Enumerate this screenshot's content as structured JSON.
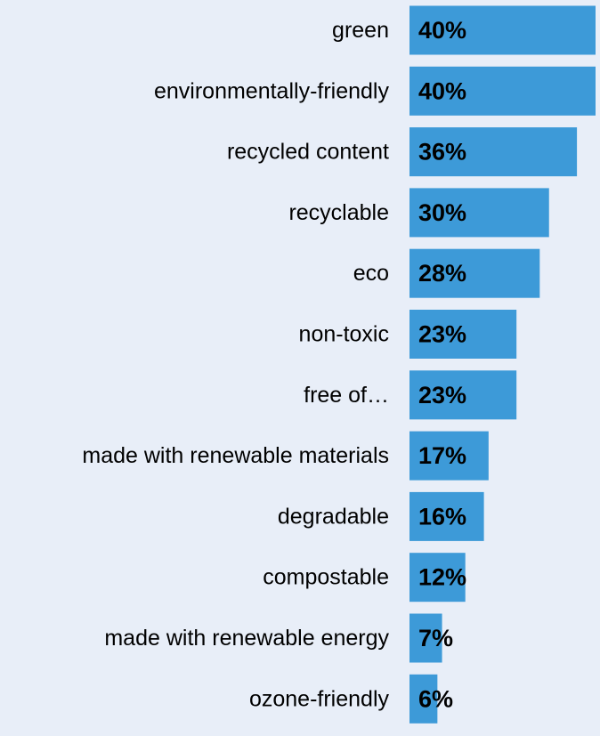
{
  "chart_data": {
    "type": "bar",
    "orientation": "horizontal",
    "categories": [
      "green",
      "environmentally-friendly",
      "recycled content",
      "recyclable",
      "eco",
      "non-toxic",
      "free of…",
      "made with renewable materials",
      "degradable",
      "compostable",
      "made with renewable energy",
      "ozone-friendly"
    ],
    "values": [
      40,
      40,
      36,
      30,
      28,
      23,
      23,
      17,
      16,
      12,
      7,
      6
    ],
    "value_labels": [
      "40%",
      "40%",
      "36%",
      "30%",
      "28%",
      "23%",
      "23%",
      "17%",
      "16%",
      "12%",
      "7%",
      "6%"
    ],
    "unit": "%",
    "xlim": [
      0,
      40
    ],
    "grid": false,
    "legend": "none",
    "colors": {
      "bar": "#3d9ad8",
      "background": "#e8eef8",
      "text": "#000000"
    }
  }
}
